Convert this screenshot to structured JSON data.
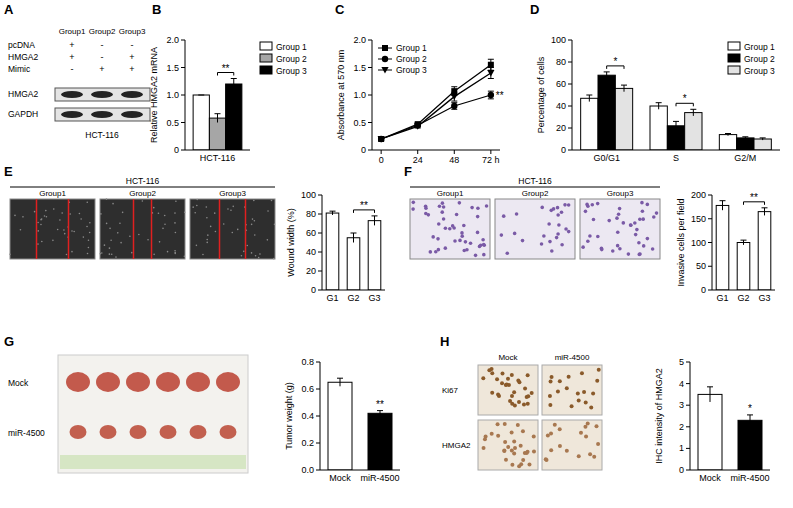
{
  "chart_data": [
    {
      "panel": "B",
      "type": "bar",
      "y_label": "Relative HMGA2 mRNA",
      "categories": [
        "HCT-116"
      ],
      "series": [
        {
          "name": "Group 1",
          "color": "#ffffff",
          "values": [
            1.0
          ],
          "errors": [
            0
          ]
        },
        {
          "name": "Group 2",
          "color": "#a6a6a6",
          "values": [
            0.58
          ],
          "errors": [
            0.08
          ]
        },
        {
          "name": "Group 3",
          "color": "#000000",
          "values": [
            1.2
          ],
          "errors": [
            0.1
          ]
        }
      ],
      "ylim": [
        0,
        2
      ],
      "yticks": [
        0,
        0.5,
        {
          "value": 1,
          "label": "1.0"
        },
        1.5,
        {
          "value": 2,
          "label": "2.0"
        }
      ],
      "legend": "right",
      "annotations": [
        {
          "text": "**",
          "between": [
            1,
            2
          ]
        }
      ]
    },
    {
      "panel": "C",
      "type": "line",
      "y_label": "Absorbance at 570 nm",
      "x": [
        0,
        24,
        48,
        72
      ],
      "xlim": [
        -6,
        78
      ],
      "xticks": [
        0,
        24,
        48,
        {
          "value": 72,
          "label": "72 h"
        }
      ],
      "series": [
        {
          "name": "Group 1",
          "color": "#000000",
          "marker": "square",
          "values": [
            0.2,
            0.47,
            1.07,
            1.55
          ],
          "errors": [
            0.02,
            0.03,
            0.08,
            0.1
          ]
        },
        {
          "name": "Group 2",
          "color": "#000000",
          "marker": "circle",
          "values": [
            0.2,
            0.45,
            0.8,
            1.0
          ],
          "errors": [
            0.02,
            0.03,
            0.06,
            0.07
          ]
        },
        {
          "name": "Group 3",
          "color": "#000000",
          "marker": "triangle",
          "values": [
            0.2,
            0.43,
            0.97,
            1.4
          ],
          "errors": [
            0.02,
            0.03,
            0.08,
            0.1
          ]
        }
      ],
      "ylim": [
        0,
        2
      ],
      "yticks": [
        0,
        0.5,
        {
          "value": 1,
          "label": "1.0"
        },
        1.5,
        {
          "value": 2,
          "label": "2.0"
        }
      ],
      "legend": "top-left",
      "annotations": [
        {
          "text": "**",
          "series": 1,
          "point": 3
        }
      ]
    },
    {
      "panel": "D",
      "type": "bar",
      "y_label": "Percentage of cells",
      "categories": [
        "G0/G1",
        "S",
        "G2/M"
      ],
      "series": [
        {
          "name": "Group 1",
          "color": "#ffffff",
          "values": [
            47,
            40,
            14
          ],
          "errors": [
            3,
            3,
            1
          ]
        },
        {
          "name": "Group 2",
          "color": "#000000",
          "values": [
            68,
            22,
            11
          ],
          "errors": [
            3,
            4,
            1
          ]
        },
        {
          "name": "Group 3",
          "color": "#e3e3e3",
          "values": [
            56,
            34,
            10
          ],
          "errors": [
            3,
            3,
            1
          ]
        }
      ],
      "ylim": [
        0,
        100
      ],
      "yticks": [
        0,
        20,
        40,
        60,
        80,
        100
      ],
      "legend": "top-right",
      "annotations": [
        {
          "text": "*",
          "category": 0,
          "between": [
            1,
            2
          ]
        },
        {
          "text": "*",
          "category": 1,
          "between": [
            1,
            2
          ]
        }
      ]
    },
    {
      "type": "bar",
      "y_label": "Wound width (%)",
      "categories": [
        "G1",
        "G2",
        "G3"
      ],
      "color": "#ffffff",
      "values": [
        81,
        55,
        73
      ],
      "errors": [
        2,
        5,
        5
      ],
      "ylim": [
        0,
        100
      ],
      "yticks": [
        0,
        20,
        40,
        60,
        80,
        100
      ],
      "annotations": [
        {
          "text": "**",
          "between": [
            1,
            2
          ]
        }
      ]
    },
    {
      "type": "bar",
      "y_label": "Invasive cells per field",
      "categories": [
        "G1",
        "G2",
        "G3"
      ],
      "color": "#ffffff",
      "values": [
        178,
        100,
        165
      ],
      "errors": [
        10,
        5,
        8
      ],
      "ylim": [
        0,
        200
      ],
      "yticks": [
        0,
        50,
        100,
        150,
        200
      ],
      "annotations": [
        {
          "text": "**",
          "between": [
            1,
            2
          ]
        }
      ]
    },
    {
      "type": "bar",
      "y_label": "Tumor weight (g)",
      "categories": [
        "Mock",
        "miR-4500"
      ],
      "colors": [
        "#ffffff",
        "#000000"
      ],
      "values": [
        0.65,
        0.42
      ],
      "errors": [
        0.03,
        0.02
      ],
      "ylim": [
        0,
        0.8
      ],
      "yticks": [
        {
          "value": 0,
          "label": "0.0"
        },
        0.2,
        0.4,
        0.6,
        0.8
      ],
      "annotations": [
        {
          "text": "**",
          "over": 1
        }
      ]
    },
    {
      "type": "bar",
      "y_label": "IHC intensity of HMGA2",
      "categories": [
        "Mock",
        "miR-4500"
      ],
      "colors": [
        "#ffffff",
        "#000000"
      ],
      "values": [
        3.5,
        2.3
      ],
      "errors": [
        0.35,
        0.25
      ],
      "ylim": [
        0,
        5
      ],
      "yticks": [
        0,
        1,
        2,
        3,
        4,
        5
      ],
      "annotations": [
        {
          "text": "*",
          "over": 1
        }
      ]
    }
  ],
  "blot": {
    "panel": "A",
    "groups": [
      "Group1",
      "Group2",
      "Group3"
    ],
    "rows": [
      {
        "label": "pcDNA",
        "signs": [
          "+",
          "-",
          "-"
        ]
      },
      {
        "label": "HMGA2",
        "signs": [
          "+",
          "-",
          "+"
        ]
      },
      {
        "label": "Mimic",
        "signs": [
          "-",
          "+",
          "+"
        ]
      }
    ],
    "bands": [
      "HMGA2",
      "GAPDH"
    ],
    "cell_line": "HCT-116"
  },
  "wound_assay": {
    "panel": "E",
    "title": "HCT-116",
    "labels": [
      "Group1",
      "Group2",
      "Group3"
    ]
  },
  "invasion_assay": {
    "panel": "F",
    "title": "HCT-116",
    "labels": [
      "Group1",
      "Group2",
      "Group3"
    ]
  },
  "xenograft": {
    "panel": "G",
    "rows": [
      "Mock",
      "miR-4500"
    ]
  },
  "ihc": {
    "panel": "H",
    "columns": [
      "Mock",
      "miR-4500"
    ],
    "rows": [
      "Ki67",
      "HMGA2"
    ]
  }
}
